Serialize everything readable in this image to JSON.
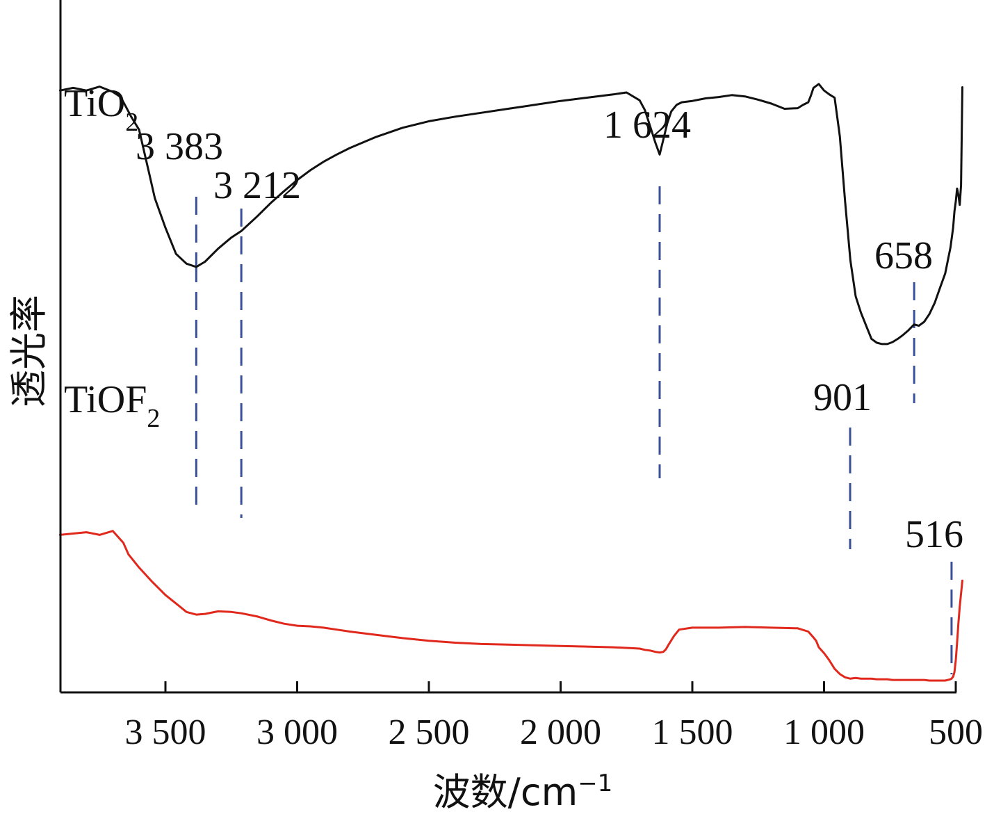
{
  "chart_data": {
    "type": "line",
    "xlabel": "波数/cm",
    "xlabel_superscript": "−1",
    "ylabel": "透光率",
    "xlim": [
      3900,
      500
    ],
    "x_ticks": [
      3500,
      3000,
      2500,
      2000,
      1500,
      1000,
      500
    ],
    "x_tick_labels": [
      "3 500",
      "3 000",
      "2 500",
      "2 000",
      "1 500",
      "1 000",
      "500"
    ],
    "y_ticks_shown": false,
    "grid": false,
    "colors": {
      "axis": "#111111",
      "TiO2": "#111111",
      "TiOF2": "#e0281c",
      "guide": "#3a4f9a"
    },
    "series": [
      {
        "name": "TiO2",
        "name_base": "TiO",
        "name_sub": "2",
        "color": "#111111",
        "x": [
          3900,
          3850,
          3800,
          3750,
          3700,
          3670,
          3650,
          3630,
          3600,
          3580,
          3560,
          3540,
          3500,
          3460,
          3420,
          3383,
          3350,
          3300,
          3250,
          3212,
          3150,
          3100,
          3050,
          3000,
          2950,
          2900,
          2850,
          2800,
          2700,
          2600,
          2500,
          2400,
          2300,
          2200,
          2100,
          2000,
          1900,
          1800,
          1750,
          1700,
          1680,
          1660,
          1640,
          1624,
          1610,
          1595,
          1580,
          1560,
          1540,
          1500,
          1450,
          1400,
          1350,
          1300,
          1250,
          1200,
          1150,
          1100,
          1080,
          1060,
          1050,
          1040,
          1020,
          1000,
          980,
          960,
          940,
          920,
          900,
          880,
          860,
          840,
          820,
          800,
          780,
          760,
          740,
          720,
          700,
          680,
          658,
          640,
          620,
          600,
          580,
          560,
          540,
          530,
          520,
          510,
          505,
          500,
          495,
          490,
          485,
          480,
          478,
          475
        ],
        "y": [
          92.0,
          92.4,
          92.0,
          92.6,
          91.8,
          91.0,
          89.5,
          88.0,
          86.0,
          82.5,
          79.0,
          75.5,
          71.0,
          67.0,
          65.5,
          65.0,
          65.8,
          67.8,
          69.5,
          70.5,
          72.8,
          74.8,
          76.6,
          78.3,
          79.8,
          81.1,
          82.2,
          83.2,
          84.9,
          86.3,
          87.3,
          88.0,
          88.6,
          89.2,
          89.8,
          90.4,
          90.9,
          91.4,
          91.7,
          90.5,
          89.0,
          86.5,
          84.0,
          82.2,
          84.5,
          87.0,
          88.8,
          89.8,
          90.2,
          90.4,
          90.8,
          91.0,
          91.3,
          91.1,
          90.6,
          90.0,
          89.2,
          89.3,
          89.8,
          90.2,
          91.2,
          92.4,
          93.0,
          92.0,
          91.4,
          90.9,
          85.0,
          75.0,
          66.0,
          60.5,
          58.0,
          56.0,
          54.0,
          53.4,
          53.2,
          53.2,
          53.5,
          54.0,
          54.6,
          55.3,
          56.2,
          56.0,
          56.6,
          57.8,
          59.5,
          61.8,
          64.0,
          66.0,
          68.0,
          71.0,
          73.5,
          75.0,
          77.0,
          76.0,
          74.5,
          77.5,
          83.0,
          92.5
        ]
      },
      {
        "name": "TiOF2",
        "name_base": "TiOF",
        "name_sub": "2",
        "color": "#e0281c",
        "x": [
          3900,
          3850,
          3800,
          3750,
          3700,
          3660,
          3640,
          3600,
          3550,
          3500,
          3460,
          3420,
          3383,
          3350,
          3300,
          3250,
          3212,
          3150,
          3100,
          3050,
          3000,
          2950,
          2900,
          2850,
          2800,
          2700,
          2600,
          2500,
          2400,
          2300,
          2200,
          2100,
          2000,
          1900,
          1800,
          1750,
          1700,
          1680,
          1660,
          1640,
          1624,
          1610,
          1600,
          1590,
          1570,
          1550,
          1500,
          1400,
          1300,
          1200,
          1100,
          1060,
          1040,
          1030,
          1020,
          1000,
          980,
          960,
          940,
          920,
          901,
          880,
          860,
          840,
          820,
          800,
          780,
          760,
          740,
          720,
          700,
          680,
          660,
          640,
          620,
          600,
          580,
          560,
          540,
          530,
          520,
          516,
          510,
          505,
          500,
          495,
          490,
          485,
          480,
          475
        ],
        "y": [
          24.0,
          24.2,
          24.4,
          24.0,
          24.6,
          22.8,
          21.0,
          19.0,
          16.8,
          14.8,
          13.5,
          12.2,
          11.8,
          11.9,
          12.3,
          12.2,
          12.0,
          11.5,
          10.9,
          10.4,
          10.1,
          10.0,
          9.8,
          9.5,
          9.2,
          8.7,
          8.2,
          7.8,
          7.5,
          7.3,
          7.2,
          7.1,
          7.0,
          6.9,
          6.8,
          6.7,
          6.6,
          6.4,
          6.3,
          6.1,
          6.0,
          6.1,
          6.5,
          7.2,
          8.5,
          9.5,
          9.8,
          9.8,
          9.9,
          9.8,
          9.7,
          9.2,
          8.3,
          7.8,
          6.8,
          5.9,
          4.8,
          3.5,
          2.7,
          2.2,
          2.0,
          2.1,
          2.0,
          2.0,
          2.0,
          1.9,
          1.9,
          1.9,
          1.8,
          1.8,
          1.8,
          1.8,
          1.8,
          1.8,
          1.8,
          1.7,
          1.7,
          1.7,
          1.7,
          1.8,
          1.9,
          2.0,
          2.3,
          3.0,
          4.8,
          7.5,
          10.5,
          13.0,
          15.0,
          17.0
        ]
      }
    ],
    "annotations": [
      {
        "text": "3 383",
        "x": 3383
      },
      {
        "text": "3 212",
        "x": 3212
      },
      {
        "text": "1 624",
        "x": 1624
      },
      {
        "text": "658",
        "x": 658
      },
      {
        "text": "901",
        "x": 901
      },
      {
        "text": "516",
        "x": 516
      }
    ]
  }
}
